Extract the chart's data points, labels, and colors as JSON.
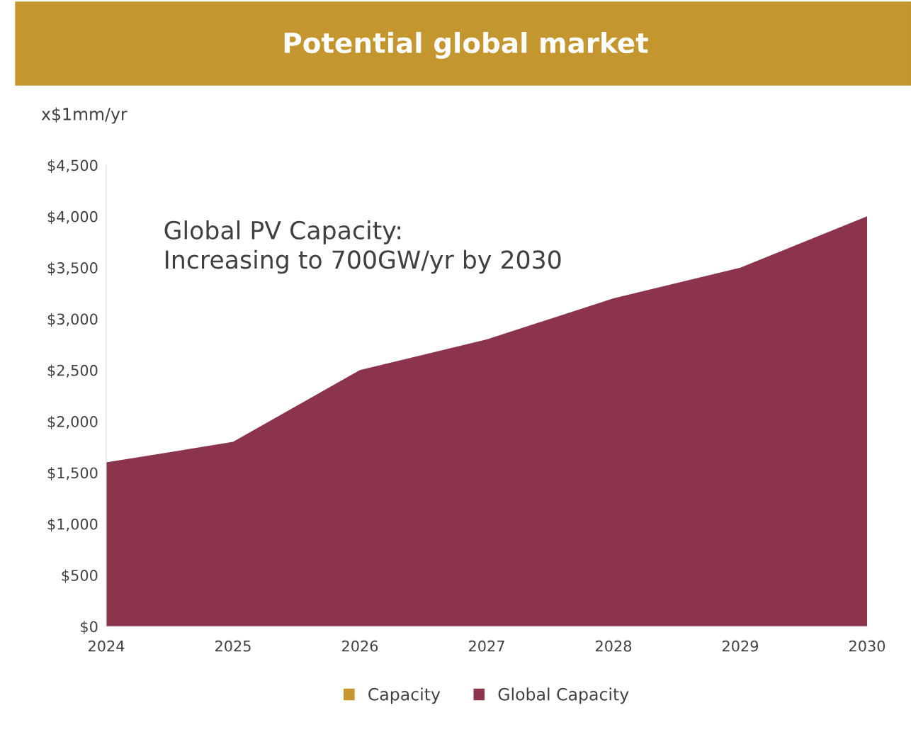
{
  "chart_data": {
    "type": "area",
    "title": "Potential global market",
    "ylabel": "x$1mm/yr",
    "categories": [
      "2024",
      "2025",
      "2026",
      "2027",
      "2028",
      "2029",
      "2030"
    ],
    "series": [
      {
        "name": "Capacity",
        "color": "#c4962f",
        "values": [
          null,
          null,
          null,
          null,
          null,
          null,
          null
        ]
      },
      {
        "name": "Global Capacity",
        "color": "#8b344c",
        "values": [
          1600,
          1800,
          2500,
          2800,
          3200,
          3500,
          4000
        ]
      }
    ],
    "ylim": [
      0,
      4500
    ],
    "yticks": [
      {
        "value": 0,
        "label": "$0"
      },
      {
        "value": 500,
        "label": "$500"
      },
      {
        "value": 1000,
        "label": "$1,000"
      },
      {
        "value": 1500,
        "label": "$1,500"
      },
      {
        "value": 2000,
        "label": "$2,000"
      },
      {
        "value": 2500,
        "label": "$2,500"
      },
      {
        "value": 3000,
        "label": "$3,000"
      },
      {
        "value": 3500,
        "label": "$3,500"
      },
      {
        "value": 4000,
        "label": "$4,000"
      },
      {
        "value": 4500,
        "label": "$4,500"
      }
    ],
    "annotations": [
      "Global PV Capacity:\nIncreasing to 700GW/yr by 2030"
    ],
    "legend": "bottom",
    "grid": false
  }
}
